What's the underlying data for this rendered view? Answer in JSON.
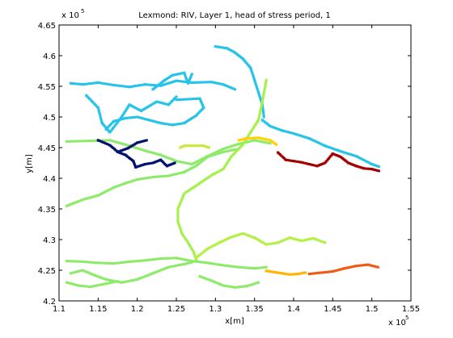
{
  "chart_data": {
    "type": "scatter",
    "title": "Lexmond: RIV, Layer 1, head of stress period, 1",
    "xlabel": "x[m]",
    "ylabel": "y[m]",
    "xlim": [
      110000,
      155000
    ],
    "ylim": [
      420000,
      465000
    ],
    "x_ticks": [
      110000,
      115000,
      120000,
      125000,
      130000,
      135000,
      140000,
      145000,
      150000,
      155000
    ],
    "y_ticks": [
      420000,
      425000,
      430000,
      435000,
      440000,
      445000,
      450000,
      455000,
      460000,
      465000
    ],
    "x_tick_labels": [
      "1.1",
      "1.15",
      "1.2",
      "1.25",
      "1.3",
      "1.35",
      "1.4",
      "1.45",
      "1.5",
      "1.55"
    ],
    "y_tick_labels": [
      "4.2",
      "4.25",
      "4.3",
      "4.35",
      "4.4",
      "4.45",
      "4.5",
      "4.55",
      "4.6",
      "4.65"
    ],
    "x_exponent": {
      "base": "x 10",
      "power": "5"
    },
    "y_exponent": {
      "base": "x 10",
      "power": "5"
    },
    "grid": false,
    "legend": "none",
    "colormap": "jet",
    "series": [
      {
        "color": "#27c3e8",
        "points": [
          [
            111500,
            455500
          ],
          [
            113000,
            455300
          ],
          [
            115000,
            455600
          ],
          [
            117000,
            455200
          ],
          [
            119000,
            454900
          ],
          [
            121000,
            455300
          ],
          [
            123000,
            455100
          ],
          [
            125000,
            455900
          ],
          [
            127000,
            455600
          ],
          [
            129500,
            455700
          ],
          [
            131000,
            455300
          ],
          [
            132500,
            454500
          ]
        ]
      },
      {
        "color": "#27c3e8",
        "points": [
          [
            113500,
            453500
          ],
          [
            115000,
            451500
          ],
          [
            115500,
            449000
          ],
          [
            116500,
            447500
          ],
          [
            118000,
            450000
          ],
          [
            119000,
            452000
          ],
          [
            120500,
            451000
          ],
          [
            122500,
            452500
          ],
          [
            124000,
            452000
          ],
          [
            125000,
            453300
          ]
        ]
      },
      {
        "color": "#27c3e8",
        "points": [
          [
            116000,
            448000
          ],
          [
            117000,
            449300
          ],
          [
            118500,
            449800
          ],
          [
            120000,
            450000
          ],
          [
            121500,
            449500
          ],
          [
            123000,
            449000
          ],
          [
            124500,
            448700
          ],
          [
            126000,
            449000
          ],
          [
            127500,
            450200
          ],
          [
            128500,
            451500
          ],
          [
            128000,
            453000
          ],
          [
            125000,
            452800
          ]
        ]
      },
      {
        "color": "#27c3e8",
        "points": [
          [
            122000,
            454500
          ],
          [
            123500,
            456000
          ],
          [
            124500,
            456800
          ],
          [
            126000,
            457200
          ],
          [
            126500,
            455500
          ],
          [
            127000,
            457000
          ]
        ]
      },
      {
        "color": "#27c3e8",
        "points": [
          [
            130000,
            461500
          ],
          [
            131500,
            461200
          ],
          [
            132500,
            460500
          ],
          [
            133500,
            459500
          ],
          [
            134500,
            458000
          ],
          [
            135000,
            456000
          ],
          [
            135500,
            454000
          ],
          [
            136000,
            452000
          ],
          [
            136200,
            450000
          ]
        ]
      },
      {
        "color": "#27c3e8",
        "points": [
          [
            136000,
            449500
          ],
          [
            137000,
            448500
          ],
          [
            138500,
            447800
          ],
          [
            140000,
            447300
          ],
          [
            142000,
            446500
          ],
          [
            144000,
            445300
          ],
          [
            146000,
            444400
          ],
          [
            148000,
            443600
          ],
          [
            150000,
            442300
          ],
          [
            150900,
            441900
          ]
        ]
      },
      {
        "color": "#8eea6a",
        "points": [
          [
            111000,
            446000
          ],
          [
            114000,
            446100
          ],
          [
            116500,
            446200
          ],
          [
            119000,
            445300
          ],
          [
            121000,
            444500
          ],
          [
            123000,
            443800
          ],
          [
            125000,
            442800
          ],
          [
            127000,
            442300
          ],
          [
            129000,
            443600
          ],
          [
            131000,
            444800
          ],
          [
            133000,
            445600
          ],
          [
            135000,
            446200
          ],
          [
            137000,
            445700
          ]
        ]
      },
      {
        "color": "#8eea6a",
        "points": [
          [
            111000,
            435500
          ],
          [
            113000,
            436500
          ],
          [
            115000,
            437200
          ],
          [
            117000,
            438500
          ],
          [
            118500,
            439200
          ],
          [
            120000,
            439800
          ],
          [
            122000,
            440200
          ],
          [
            124000,
            440400
          ],
          [
            126000,
            441000
          ],
          [
            127500,
            442000
          ],
          [
            129000,
            443500
          ],
          [
            131000,
            444300
          ],
          [
            133000,
            444800
          ]
        ]
      },
      {
        "color": "#a6f04e",
        "points": [
          [
            136500,
            456000
          ],
          [
            136000,
            452500
          ],
          [
            135500,
            449500
          ],
          [
            134500,
            447500
          ],
          [
            133500,
            445500
          ],
          [
            132000,
            443500
          ],
          [
            131000,
            441500
          ],
          [
            129500,
            440500
          ],
          [
            128000,
            439200
          ],
          [
            126000,
            437500
          ],
          [
            125200,
            435000
          ],
          [
            125200,
            433000
          ],
          [
            125700,
            431000
          ],
          [
            126500,
            429500
          ],
          [
            127200,
            428000
          ],
          [
            127600,
            426500
          ]
        ]
      },
      {
        "color": "#b4f046",
        "points": [
          [
            127500,
            427000
          ],
          [
            129000,
            428500
          ],
          [
            130500,
            429500
          ],
          [
            132000,
            430400
          ],
          [
            133500,
            431000
          ],
          [
            135000,
            430300
          ],
          [
            136500,
            429200
          ],
          [
            138000,
            429500
          ],
          [
            139500,
            430300
          ],
          [
            141000,
            429800
          ],
          [
            142500,
            430200
          ],
          [
            144000,
            429500
          ]
        ]
      },
      {
        "color": "#8eea6a",
        "points": [
          [
            111000,
            426500
          ],
          [
            113000,
            426400
          ],
          [
            115000,
            426200
          ],
          [
            117000,
            426100
          ],
          [
            119000,
            426400
          ],
          [
            121000,
            426600
          ],
          [
            123000,
            426900
          ],
          [
            125000,
            427000
          ],
          [
            127000,
            426500
          ],
          [
            129000,
            426200
          ],
          [
            131000,
            425800
          ],
          [
            133000,
            425500
          ],
          [
            135000,
            425300
          ],
          [
            136500,
            425500
          ]
        ]
      },
      {
        "color": "#8eea6a",
        "points": [
          [
            111500,
            424500
          ],
          [
            113000,
            425000
          ],
          [
            114500,
            424200
          ],
          [
            116000,
            423500
          ],
          [
            118000,
            423000
          ],
          [
            120000,
            423500
          ],
          [
            122000,
            424500
          ],
          [
            124000,
            425500
          ],
          [
            126000,
            426000
          ],
          [
            127000,
            426300
          ]
        ]
      },
      {
        "color": "#8eea6a",
        "points": [
          [
            111000,
            423000
          ],
          [
            112500,
            422500
          ],
          [
            114000,
            422300
          ],
          [
            116000,
            422800
          ],
          [
            117500,
            423200
          ]
        ]
      },
      {
        "color": "#8eea6a",
        "points": [
          [
            128000,
            424000
          ],
          [
            129500,
            423300
          ],
          [
            131000,
            422500
          ],
          [
            132500,
            422200
          ],
          [
            134000,
            422400
          ],
          [
            135500,
            423000
          ]
        ]
      },
      {
        "color": "#00126e",
        "points": [
          [
            115000,
            446200
          ],
          [
            116500,
            445400
          ],
          [
            117500,
            444300
          ],
          [
            118500,
            443800
          ],
          [
            119500,
            442800
          ],
          [
            119800,
            441800
          ],
          [
            121000,
            442300
          ],
          [
            122000,
            442500
          ],
          [
            123000,
            443000
          ],
          [
            123800,
            442000
          ],
          [
            124800,
            442500
          ]
        ]
      },
      {
        "color": "#00126e",
        "points": [
          [
            117500,
            444300
          ],
          [
            118800,
            444900
          ],
          [
            120000,
            445800
          ],
          [
            121200,
            446200
          ]
        ]
      },
      {
        "color": "#a00000",
        "points": [
          [
            138000,
            444200
          ],
          [
            139000,
            443000
          ],
          [
            140000,
            442800
          ],
          [
            141000,
            442600
          ],
          [
            142000,
            442300
          ],
          [
            143000,
            442000
          ],
          [
            144000,
            442500
          ],
          [
            145000,
            444000
          ],
          [
            146000,
            443500
          ],
          [
            147000,
            442500
          ],
          [
            148000,
            442000
          ],
          [
            149000,
            441600
          ],
          [
            150000,
            441500
          ],
          [
            150900,
            441200
          ]
        ]
      },
      {
        "color": "#ffd200",
        "points": [
          [
            133000,
            446200
          ],
          [
            134000,
            446500
          ],
          [
            135500,
            446600
          ],
          [
            137000,
            446200
          ],
          [
            137800,
            445500
          ]
        ]
      },
      {
        "color": "#ffb400",
        "points": [
          [
            136500,
            424900
          ],
          [
            137500,
            424700
          ],
          [
            138500,
            424500
          ],
          [
            139500,
            424300
          ],
          [
            140500,
            424400
          ],
          [
            141500,
            424600
          ]
        ]
      },
      {
        "color": "#f05a14",
        "points": [
          [
            142000,
            424400
          ],
          [
            143500,
            424600
          ],
          [
            145000,
            424800
          ],
          [
            146500,
            425300
          ],
          [
            148000,
            425700
          ],
          [
            149500,
            425900
          ],
          [
            150800,
            425500
          ]
        ]
      },
      {
        "color": "#c8e83a",
        "points": [
          [
            125500,
            445000
          ],
          [
            126000,
            445300
          ],
          [
            128500,
            445300
          ],
          [
            129200,
            445000
          ]
        ]
      }
    ]
  }
}
